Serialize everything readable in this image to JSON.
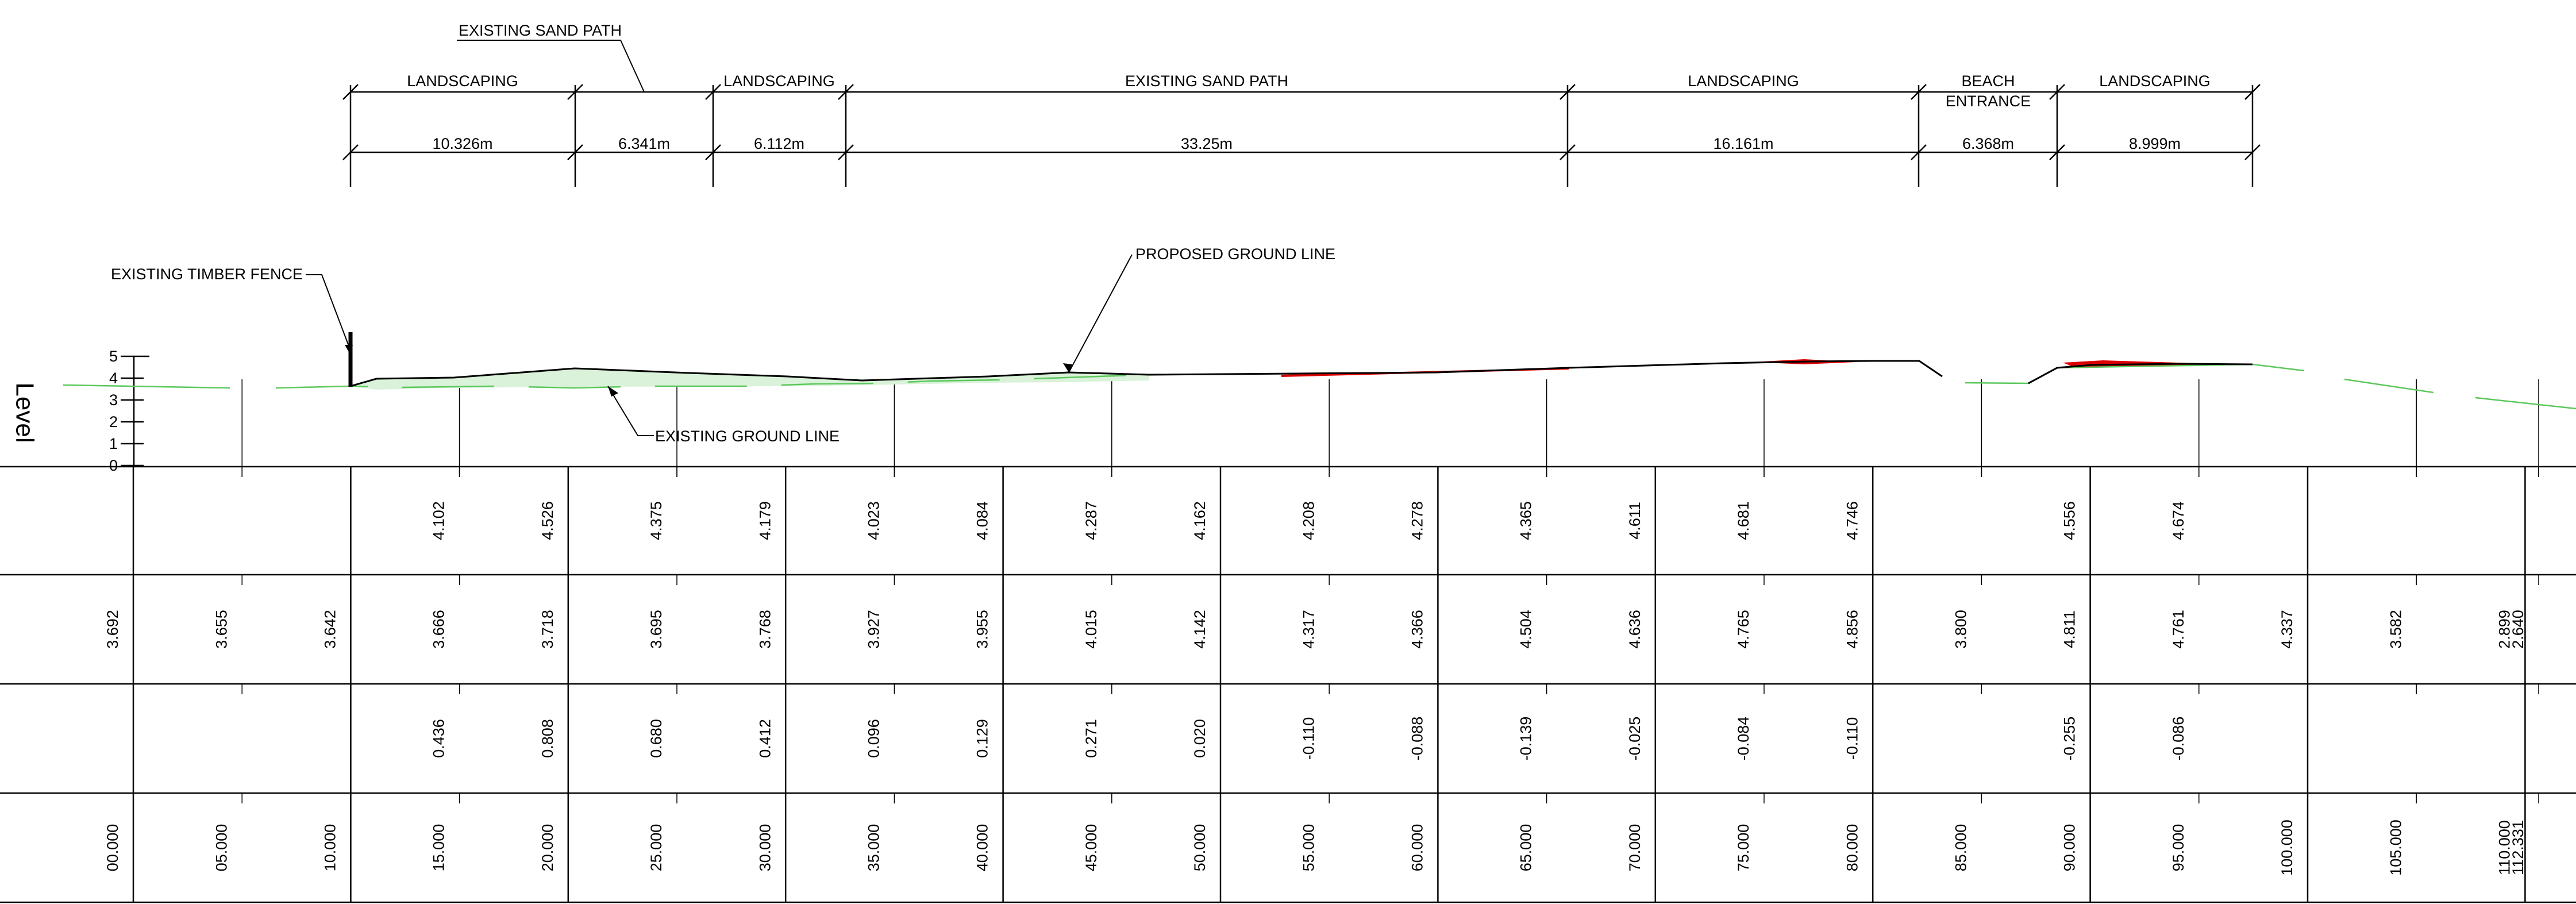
{
  "drawing": {
    "vertical_label": "Level",
    "scale_ticks": [
      "5",
      "4",
      "3",
      "2",
      "1",
      "0"
    ],
    "zone_labels": [
      "LANDSCAPING",
      "LANDSCAPING",
      "EXISTING SAND PATH",
      "LANDSCAPING",
      "BEACH",
      "ENTRANCE",
      "LANDSCAPING"
    ],
    "zone_dimensions": [
      "10.326m",
      "6.341m",
      "6.112m",
      "33.25m",
      "16.161m",
      "6.368m",
      "8.999m"
    ],
    "annotations": {
      "existing_sand_path": "EXISTING SAND PATH",
      "existing_timber_fence": "EXISTING TIMBER FENCE",
      "proposed_ground_line": "PROPOSED GROUND LINE",
      "existing_ground_line": "EXISTING GROUND LINE"
    },
    "colors": {
      "existing_ground": "#5cc85c",
      "cut_fill": "#d9f2d9",
      "red_fill": "#dd0000",
      "linework": "#000000"
    },
    "table": {
      "chainages": [
        "00.000",
        "05.000",
        "10.000",
        "15.000",
        "20.000",
        "25.000",
        "30.000",
        "35.000",
        "40.000",
        "45.000",
        "50.000",
        "55.000",
        "60.000",
        "65.000",
        "70.000",
        "75.000",
        "80.000",
        "85.000",
        "90.000",
        "95.000",
        "100.000",
        "105.000",
        "110.000",
        "112.331"
      ],
      "proposed_levels": [
        "",
        "",
        "",
        "4.102",
        "4.526",
        "4.375",
        "4.179",
        "4.023",
        "4.084",
        "4.287",
        "4.162",
        "4.208",
        "4.278",
        "4.365",
        "4.611",
        "4.681",
        "4.746",
        "",
        "4.556",
        "4.674",
        "",
        "",
        "",
        ""
      ],
      "existing_levels": [
        "3.692",
        "3.655",
        "3.642",
        "3.666",
        "3.718",
        "3.695",
        "3.768",
        "3.927",
        "3.955",
        "4.015",
        "4.142",
        "4.317",
        "4.366",
        "4.504",
        "4.636",
        "4.765",
        "4.856",
        "3.800",
        "4.811",
        "4.761",
        "4.337",
        "3.582",
        "2.899",
        "2.640"
      ],
      "differences": [
        "",
        "",
        "",
        "0.436",
        "0.808",
        "0.680",
        "0.412",
        "0.096",
        "0.129",
        "0.271",
        "0.020",
        "-0.110",
        "-0.088",
        "-0.139",
        "-0.025",
        "-0.084",
        "-0.110",
        "",
        "-0.255",
        "-0.086",
        "",
        "",
        "",
        ""
      ]
    }
  }
}
